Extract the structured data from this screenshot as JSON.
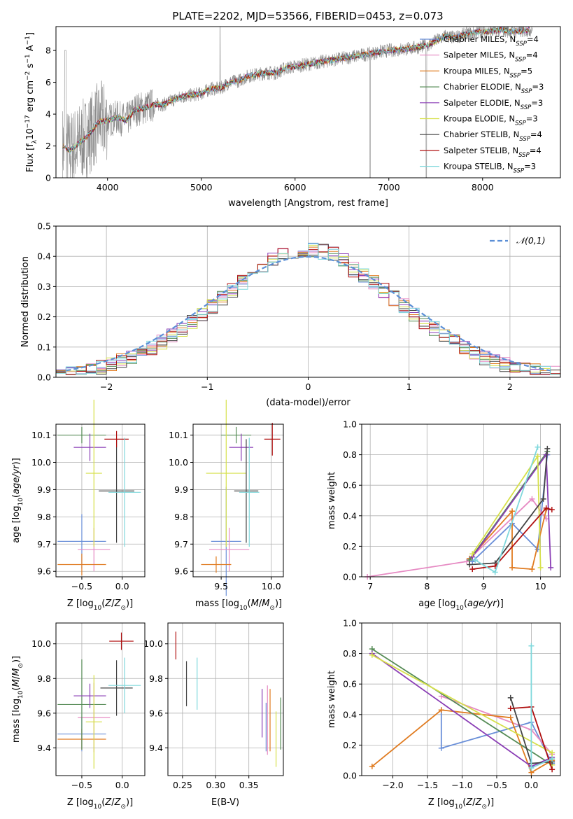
{
  "title": "PLATE=2202, MJD=53566, FIBERID=0453, z=0.073",
  "models": [
    {
      "name": "Chabrier MILES, N<sub>SSP</sub>=4",
      "label_main": "Chabrier MILES, N",
      "label_sub": "SSP",
      "label_end": "=4",
      "color": "#6a8fd8"
    },
    {
      "name": "Salpeter MILES",
      "label_main": "Salpeter MILES, N",
      "label_sub": "SSP",
      "label_end": "=4",
      "color": "#e68ac3"
    },
    {
      "name": "Kroupa MILES",
      "label_main": "Kroupa MILES, N",
      "label_sub": "SSP",
      "label_end": "=5",
      "color": "#e07b20"
    },
    {
      "name": "Chabrier ELODIE",
      "label_main": "Chabrier ELODIE, N",
      "label_sub": "SSP",
      "label_end": "=3",
      "color": "#558b55"
    },
    {
      "name": "Salpeter ELODIE",
      "label_main": "Salpeter ELODIE, N",
      "label_sub": "SSP",
      "label_end": "=3",
      "color": "#8a3db5"
    },
    {
      "name": "Kroupa ELODIE",
      "label_main": "Kroupa ELODIE, N",
      "label_sub": "SSP",
      "label_end": "=3",
      "color": "#d6e04a"
    },
    {
      "name": "Chabrier STELIB",
      "label_main": "Chabrier STELIB, N",
      "label_sub": "SSP",
      "label_end": "=4",
      "color": "#444444"
    },
    {
      "name": "Salpeter STELIB",
      "label_main": "Salpeter STELIB, N",
      "label_sub": "SSP",
      "label_end": "=4",
      "color": "#b01010"
    },
    {
      "name": "Kroupa STELIB",
      "label_main": "Kroupa STELIB, N",
      "label_sub": "SSP",
      "label_end": "=3",
      "color": "#7fd8dc"
    }
  ],
  "chart_data": [
    {
      "id": "spectrum",
      "type": "line",
      "xlabel": "wavelength [Angstrom, rest frame]",
      "ylabel_parts": [
        "Flux [f",
        "λ",
        "10",
        "−17",
        " erg cm",
        "−2",
        " s",
        "−1",
        " A",
        "−1",
        "]"
      ],
      "xlim": [
        3450,
        8830
      ],
      "ylim": [
        0,
        9.5
      ],
      "xticks": [
        4000,
        5000,
        6000,
        7000,
        8000
      ],
      "yticks": [
        0,
        2,
        4,
        6,
        8
      ],
      "continuum_x": [
        3520,
        3600,
        3700,
        3800,
        3900,
        4000,
        4100,
        4200,
        4300,
        4400,
        4500,
        4600,
        4700,
        4800,
        4900,
        5000,
        5100,
        5200,
        5300,
        5400,
        5500,
        5600,
        5700,
        5800,
        5900,
        6000,
        6100,
        6200,
        6300,
        6400,
        6500,
        6600,
        6700,
        6800,
        6900,
        7000,
        7100,
        7200,
        7300,
        7400,
        7500,
        7600,
        7700,
        7800,
        7900,
        8000,
        8100,
        8200,
        8300,
        8400,
        8500
      ],
      "continuum_y": [
        2.0,
        1.7,
        2.2,
        2.7,
        3.5,
        3.6,
        3.8,
        3.6,
        4.3,
        4.4,
        4.6,
        4.6,
        4.9,
        5.1,
        5.2,
        5.3,
        5.6,
        5.6,
        6.0,
        6.1,
        6.4,
        6.5,
        6.6,
        6.6,
        6.9,
        7.0,
        7.1,
        7.2,
        7.3,
        7.4,
        7.5,
        7.6,
        7.7,
        7.8,
        7.9,
        8.0,
        8.05,
        8.1,
        8.2,
        8.3,
        8.6,
        8.9,
        8.8,
        9.0,
        9.1,
        9.2,
        9.2,
        9.3,
        9.2,
        9.2,
        9.3
      ]
    },
    {
      "id": "residuals",
      "type": "area",
      "xlabel": "(data-model)/error",
      "ylabel": "Normed distribution",
      "xlim": [
        -2.5,
        2.5
      ],
      "ylim": [
        0,
        0.5
      ],
      "xticks": [
        -2,
        -1,
        0,
        1,
        2
      ],
      "yticks": [
        0.0,
        0.1,
        0.2,
        0.3,
        0.4,
        0.5
      ],
      "legend": "𝒩(0,1)",
      "grid": true
    },
    {
      "id": "age_vs_Z",
      "type": "scatter",
      "xlabel": "Z [log10(Z/Z⊙)]",
      "ylabel": "age [log10(age/yr)]",
      "xlim": [
        -0.82,
        0.28
      ],
      "ylim": [
        9.58,
        10.14
      ],
      "xticks": [
        -0.5,
        0.0
      ],
      "yticks": [
        9.6,
        9.7,
        9.8,
        9.9,
        10.0,
        10.1
      ],
      "points": [
        {
          "x": -0.5,
          "y": 9.71,
          "xerr": 0.3,
          "yerr": 0.1
        },
        {
          "x": -0.35,
          "y": 9.68,
          "xerr": 0.2,
          "yerr": 0.08
        },
        {
          "x": -0.5,
          "y": 9.625,
          "xerr": 0.3,
          "yerr": 0.04
        },
        {
          "x": -0.5,
          "y": 10.1,
          "xerr": 0.3,
          "yerr": 0.03
        },
        {
          "x": -0.4,
          "y": 10.055,
          "xerr": 0.2,
          "yerr": 0.05
        },
        {
          "x": -0.35,
          "y": 9.96,
          "xerr": 0.1,
          "yerr": 0.27
        },
        {
          "x": -0.07,
          "y": 9.895,
          "xerr": 0.22,
          "yerr": 0.19
        },
        {
          "x": -0.07,
          "y": 10.085,
          "xerr": 0.15,
          "yerr": 0.03
        },
        {
          "x": 0.03,
          "y": 9.89,
          "xerr": 0.2,
          "yerr": 0.2
        }
      ]
    },
    {
      "id": "age_vs_mass",
      "type": "scatter",
      "xlabel": "mass [log10(M/M⊙)]",
      "ylabel": "",
      "xlim": [
        9.22,
        10.12
      ],
      "ylim": [
        9.58,
        10.14
      ],
      "xticks": [
        9.5,
        10.0
      ],
      "yticks": [
        9.6,
        9.7,
        9.8,
        9.9,
        10.0,
        10.1
      ],
      "points": [
        {
          "x": 9.55,
          "y": 9.71,
          "xerr": 0.15,
          "yerr": 0.2
        },
        {
          "x": 9.58,
          "y": 9.68,
          "xerr": 0.2,
          "yerr": 0.08
        },
        {
          "x": 9.45,
          "y": 9.625,
          "xerr": 0.15,
          "yerr": 0.03
        },
        {
          "x": 9.65,
          "y": 10.1,
          "xerr": 0.15,
          "yerr": 0.03
        },
        {
          "x": 9.7,
          "y": 10.055,
          "xerr": 0.12,
          "yerr": 0.05
        },
        {
          "x": 9.55,
          "y": 9.96,
          "xerr": 0.2,
          "yerr": 0.27
        },
        {
          "x": 9.75,
          "y": 9.895,
          "xerr": 0.12,
          "yerr": 0.19
        },
        {
          "x": 10.01,
          "y": 10.085,
          "xerr": 0.08,
          "yerr": 0.06
        },
        {
          "x": 9.78,
          "y": 9.89,
          "xerr": 0.1,
          "yerr": 0.2
        }
      ]
    },
    {
      "id": "weight_vs_age",
      "type": "line",
      "xlabel": "age [log10(age/yr)]",
      "ylabel": "mass weight",
      "xlim": [
        6.85,
        10.35
      ],
      "ylim": [
        0.0,
        1.0
      ],
      "xticks": [
        7,
        8,
        9,
        10
      ],
      "yticks": [
        0.0,
        0.2,
        0.4,
        0.6,
        0.8,
        1.0
      ],
      "series": [
        {
          "x": [
            8.8,
            9.5,
            9.95,
            10.12
          ],
          "y": [
            0.1,
            0.35,
            0.18,
            0.8
          ]
        },
        {
          "x": [
            6.95,
            8.7,
            9.85,
            10.1
          ],
          "y": [
            0.0,
            0.1,
            0.51,
            0.38
          ]
        },
        {
          "x": [
            8.75,
            9.5,
            9.5,
            9.85,
            10.1
          ],
          "y": [
            0.12,
            0.43,
            0.06,
            0.05,
            0.44
          ]
        },
        {
          "x": [
            8.75,
            10.12
          ],
          "y": [
            0.11,
            0.82
          ]
        },
        {
          "x": [
            8.8,
            10.1,
            10.18
          ],
          "y": [
            0.13,
            0.8,
            0.06
          ]
        },
        {
          "x": [
            8.8,
            9.95,
            10.0
          ],
          "y": [
            0.15,
            0.79,
            0.06
          ]
        },
        {
          "x": [
            8.75,
            9.2,
            10.05,
            10.12
          ],
          "y": [
            0.08,
            0.09,
            0.51,
            0.84
          ]
        },
        {
          "x": [
            8.8,
            9.2,
            10.1,
            10.2
          ],
          "y": [
            0.05,
            0.07,
            0.45,
            0.44
          ]
        },
        {
          "x": [
            8.85,
            9.2,
            9.95
          ],
          "y": [
            0.11,
            0.03,
            0.85
          ]
        }
      ]
    },
    {
      "id": "mass_vs_Z",
      "type": "scatter",
      "xlabel": "Z [log10(Z/Z⊙)]",
      "ylabel": "mass [log10(M/M⊙)]",
      "xlim": [
        -0.82,
        0.28
      ],
      "ylim": [
        9.24,
        10.12
      ],
      "xticks": [
        -0.5,
        0.0
      ],
      "yticks": [
        9.4,
        9.6,
        9.8,
        10.0
      ],
      "points": [
        {
          "x": -0.5,
          "y": 9.48,
          "xerr": 0.3,
          "yerr": 0.1
        },
        {
          "x": -0.35,
          "y": 9.575,
          "xerr": 0.2,
          "yerr": 0.2
        },
        {
          "x": -0.5,
          "y": 9.45,
          "xerr": 0.3,
          "yerr": 0.06
        },
        {
          "x": -0.5,
          "y": 9.65,
          "xerr": 0.3,
          "yerr": 0.26
        },
        {
          "x": -0.4,
          "y": 9.7,
          "xerr": 0.2,
          "yerr": 0.07
        },
        {
          "x": -0.35,
          "y": 9.55,
          "xerr": 0.1,
          "yerr": 0.27
        },
        {
          "x": -0.07,
          "y": 9.745,
          "xerr": 0.2,
          "yerr": 0.16
        },
        {
          "x": -0.01,
          "y": 10.015,
          "xerr": 0.15,
          "yerr": 0.05
        },
        {
          "x": 0.03,
          "y": 9.76,
          "xerr": 0.2,
          "yerr": 0.16
        }
      ]
    },
    {
      "id": "mass_vs_EBV",
      "type": "scatter",
      "xlabel": "E(B-V)",
      "ylabel": "",
      "xlim": [
        0.228,
        0.402
      ],
      "ylim": [
        9.24,
        10.12
      ],
      "xticks": [
        0.25,
        0.3,
        0.35
      ],
      "yticks": [
        9.4,
        9.6,
        9.8,
        10.0
      ],
      "points": [
        {
          "x": 0.376,
          "y": 9.52,
          "yerr": 0.14
        },
        {
          "x": 0.378,
          "y": 9.56,
          "yerr": 0.2
        },
        {
          "x": 0.382,
          "y": 9.56,
          "yerr": 0.18
        },
        {
          "x": 0.398,
          "y": 9.54,
          "yerr": 0.15
        },
        {
          "x": 0.37,
          "y": 9.6,
          "yerr": 0.14
        },
        {
          "x": 0.391,
          "y": 9.45,
          "yerr": 0.16
        },
        {
          "x": 0.256,
          "y": 9.77,
          "yerr": 0.13
        },
        {
          "x": 0.24,
          "y": 9.99,
          "yerr": 0.08
        },
        {
          "x": 0.272,
          "y": 9.77,
          "yerr": 0.15
        }
      ]
    },
    {
      "id": "weight_vs_Z",
      "type": "line",
      "xlabel": "Z [log10(Z/Z⊙)]",
      "ylabel": "mass weight",
      "xlim": [
        -2.45,
        0.42
      ],
      "ylim": [
        0.0,
        1.0
      ],
      "xticks": [
        -2.0,
        -1.5,
        -1.0,
        -0.5,
        0.0
      ],
      "yticks": [
        0.0,
        0.2,
        0.4,
        0.6,
        0.8,
        1.0
      ],
      "series": [
        {
          "x": [
            -1.3,
            -1.3,
            0.0,
            0.3
          ],
          "y": [
            0.43,
            0.18,
            0.35,
            0.08
          ]
        },
        {
          "x": [
            -1.3,
            0.0,
            0.3
          ],
          "y": [
            0.52,
            0.3,
            0.14
          ]
        },
        {
          "x": [
            -2.3,
            -1.3,
            -0.3,
            0.0,
            0.3
          ],
          "y": [
            0.06,
            0.43,
            0.38,
            0.02,
            0.1
          ]
        },
        {
          "x": [
            -2.3,
            0.3
          ],
          "y": [
            0.83,
            0.07
          ]
        },
        {
          "x": [
            -2.3,
            0.0,
            0.3
          ],
          "y": [
            0.8,
            0.06,
            0.12
          ]
        },
        {
          "x": [
            -2.3,
            0.3,
            0.3
          ],
          "y": [
            0.79,
            0.15,
            0.07
          ]
        },
        {
          "x": [
            -0.3,
            0.0,
            0.3
          ],
          "y": [
            0.51,
            0.08,
            0.09
          ]
        },
        {
          "x": [
            -0.3,
            0.0,
            0.3
          ],
          "y": [
            0.44,
            0.45,
            0.04
          ]
        },
        {
          "x": [
            0.0,
            0.0,
            0.3
          ],
          "y": [
            0.85,
            0.05,
            0.11
          ]
        }
      ]
    }
  ]
}
